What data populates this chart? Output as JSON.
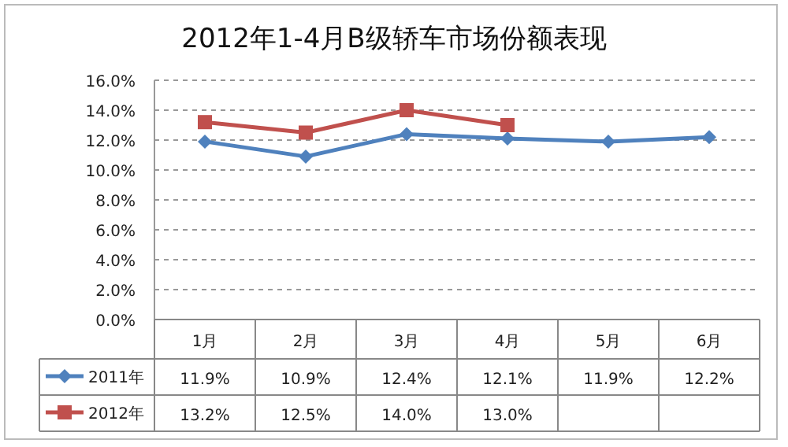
{
  "chart_data": {
    "type": "line",
    "title": "2012年1-4月B级轿车市场份额表现",
    "categories": [
      "1月",
      "2月",
      "3月",
      "4月",
      "5月",
      "6月"
    ],
    "series": [
      {
        "name": "2011年",
        "color": "#4f81bd",
        "marker": "diamond",
        "values": [
          11.9,
          10.9,
          12.4,
          12.1,
          11.9,
          12.2
        ],
        "value_labels": [
          "11.9%",
          "10.9%",
          "12.4%",
          "12.1%",
          "11.9%",
          "12.2%"
        ]
      },
      {
        "name": "2012年",
        "color": "#c0504d",
        "marker": "square",
        "values": [
          13.2,
          12.5,
          14.0,
          13.0,
          null,
          null
        ],
        "value_labels": [
          "13.2%",
          "12.5%",
          "14.0%",
          "13.0%",
          null,
          null
        ]
      }
    ],
    "ylim": [
      0,
      16
    ],
    "yticks": [
      {
        "value": 0,
        "label": "0.0%"
      },
      {
        "value": 2,
        "label": "2.0%"
      },
      {
        "value": 4,
        "label": "4.0%"
      },
      {
        "value": 6,
        "label": "6.0%"
      },
      {
        "value": 8,
        "label": "8.0%"
      },
      {
        "value": 10,
        "label": "10.0%"
      },
      {
        "value": 12,
        "label": "12.0%"
      },
      {
        "value": 14,
        "label": "14.0%"
      },
      {
        "value": 16,
        "label": "16.0%"
      }
    ],
    "grid": "y",
    "line_style": "solid",
    "legend": "bottom"
  }
}
